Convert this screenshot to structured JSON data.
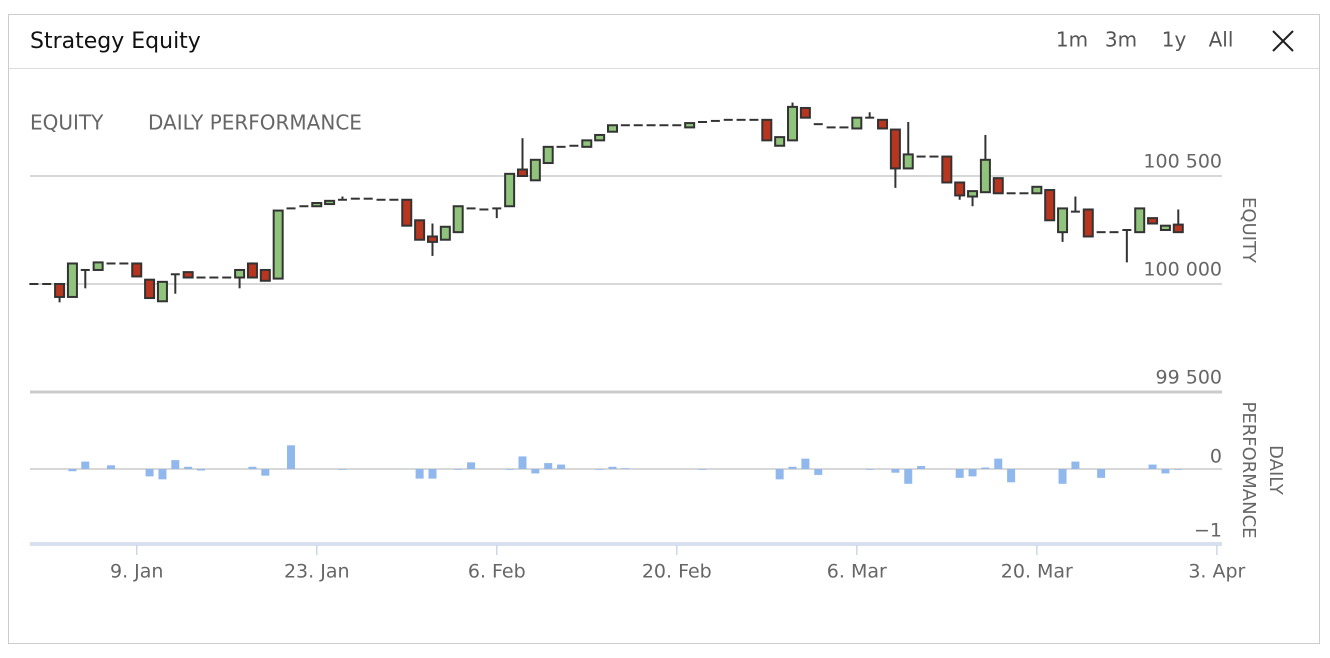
{
  "header": {
    "title": "Strategy Equity",
    "buttons": [
      "1m",
      "3m",
      "1y",
      "All"
    ]
  },
  "tabs": [
    "EQUITY",
    "DAILY PERFORMANCE"
  ],
  "chart_data": [
    {
      "type": "candlestick",
      "y_label": "EQUITY",
      "x": [
        1,
        2,
        3,
        4,
        5,
        6,
        7,
        8,
        9,
        10,
        11,
        12,
        13,
        14,
        15,
        16,
        17,
        18,
        19,
        20,
        21,
        22,
        23,
        24,
        25,
        26,
        27,
        28,
        29,
        30,
        31,
        32,
        33,
        34,
        35,
        36,
        37,
        38,
        39,
        40,
        41,
        42,
        43,
        44,
        45,
        46,
        47,
        48,
        49,
        50,
        51,
        52,
        53,
        54,
        55,
        56,
        57,
        58,
        59,
        60,
        61,
        62,
        63,
        64,
        65,
        66,
        67,
        68,
        69,
        70,
        71,
        72,
        73,
        74,
        75,
        76,
        77,
        78,
        79,
        80,
        81,
        82,
        83,
        84,
        85,
        86,
        87,
        88,
        89,
        90
      ],
      "open": [
        100000,
        100000,
        100000,
        99940,
        100065,
        100065,
        100095,
        100095,
        100095,
        100020,
        99920,
        100045,
        100055,
        100030,
        100030,
        100030,
        100030,
        100095,
        100065,
        100025,
        100350,
        100360,
        100360,
        100370,
        100390,
        100395,
        100395,
        100390,
        100390,
        100390,
        100295,
        100220,
        100205,
        100240,
        100350,
        100345,
        100350,
        100360,
        100530,
        100480,
        100560,
        100635,
        100640,
        100635,
        100665,
        100705,
        100735,
        100735,
        100735,
        100735,
        100735,
        100725,
        100750,
        100755,
        100760,
        100760,
        100760,
        100760,
        100640,
        100665,
        100815,
        100740,
        100725,
        100725,
        100720,
        100770,
        100760,
        100715,
        100535,
        100590,
        100590,
        100590,
        100470,
        100405,
        100425,
        100490,
        100420,
        100420,
        100420,
        100435,
        100240,
        100335,
        100345,
        100240,
        100240,
        100250,
        100240,
        100305,
        100250,
        100275
      ],
      "high": [
        100000,
        100000,
        100000,
        100095,
        100065,
        100100,
        100095,
        100095,
        100095,
        100020,
        100010,
        100045,
        100055,
        100030,
        100030,
        100030,
        100065,
        100100,
        100065,
        100340,
        100350,
        100360,
        100375,
        100385,
        100405,
        100395,
        100395,
        100390,
        100390,
        100390,
        100295,
        100280,
        100265,
        100360,
        100350,
        100345,
        100350,
        100510,
        100675,
        100575,
        100635,
        100635,
        100640,
        100665,
        100690,
        100735,
        100735,
        100735,
        100735,
        100735,
        100735,
        100745,
        100750,
        100755,
        100760,
        100760,
        100760,
        100760,
        100680,
        100840,
        100815,
        100740,
        100725,
        100725,
        100770,
        100795,
        100760,
        100715,
        100750,
        100590,
        100590,
        100590,
        100470,
        100430,
        100690,
        100490,
        100420,
        100420,
        100450,
        100435,
        100350,
        100405,
        100345,
        100240,
        100240,
        100250,
        100350,
        100305,
        100270,
        100345
      ],
      "low": [
        100000,
        100000,
        99915,
        99940,
        99980,
        100065,
        100095,
        100095,
        100035,
        99935,
        99920,
        99955,
        100030,
        100030,
        100030,
        100030,
        99980,
        100030,
        100015,
        100025,
        100350,
        100360,
        100360,
        100370,
        100390,
        100395,
        100395,
        100390,
        100390,
        100270,
        100205,
        100130,
        100205,
        100240,
        100350,
        100345,
        100305,
        100360,
        100500,
        100480,
        100560,
        100635,
        100640,
        100635,
        100665,
        100705,
        100735,
        100735,
        100735,
        100735,
        100735,
        100725,
        100750,
        100755,
        100760,
        100760,
        100760,
        100665,
        100640,
        100665,
        100770,
        100740,
        100725,
        100725,
        100720,
        100770,
        100720,
        100445,
        100535,
        100590,
        100590,
        100470,
        100390,
        100360,
        100425,
        100420,
        100420,
        100420,
        100420,
        100295,
        100195,
        100335,
        100220,
        100240,
        100240,
        100100,
        100240,
        100280,
        100250,
        100240
      ],
      "close": [
        100000,
        100000,
        99940,
        100095,
        100065,
        100100,
        100095,
        100095,
        100035,
        99935,
        100010,
        100045,
        100030,
        100030,
        100030,
        100030,
        100065,
        100030,
        100015,
        100340,
        100350,
        100360,
        100375,
        100385,
        100390,
        100395,
        100395,
        100390,
        100390,
        100270,
        100205,
        100195,
        100265,
        100360,
        100350,
        100345,
        100350,
        100510,
        100500,
        100575,
        100635,
        100635,
        100640,
        100665,
        100690,
        100735,
        100735,
        100735,
        100735,
        100735,
        100735,
        100745,
        100750,
        100755,
        100760,
        100760,
        100760,
        100665,
        100680,
        100820,
        100770,
        100740,
        100725,
        100725,
        100770,
        100770,
        100720,
        100535,
        100600,
        100590,
        100590,
        100470,
        100410,
        100430,
        100575,
        100420,
        100420,
        100420,
        100450,
        100295,
        100350,
        100335,
        100220,
        100240,
        100240,
        100250,
        100350,
        100280,
        100270,
        100240
      ],
      "up_color": "#90c47c",
      "down_color": "#b8361f",
      "line_color": "#333333",
      "xlim": [
        0.7,
        93.4
      ],
      "ylim": [
        99500,
        101000
      ],
      "yticks": [
        {
          "value": 99500,
          "label": "99 500"
        },
        {
          "value": 100000,
          "label": "100 000"
        },
        {
          "value": 100500,
          "label": "100 500"
        }
      ],
      "grid": true
    },
    {
      "type": "bar",
      "y_label": "DAILY PERFORMANCE",
      "x": [
        1,
        2,
        3,
        4,
        5,
        6,
        7,
        8,
        9,
        10,
        11,
        12,
        13,
        14,
        15,
        16,
        17,
        18,
        19,
        20,
        21,
        22,
        23,
        24,
        25,
        26,
        27,
        28,
        29,
        30,
        31,
        32,
        33,
        34,
        35,
        36,
        37,
        38,
        39,
        40,
        41,
        42,
        43,
        44,
        45,
        46,
        47,
        48,
        49,
        50,
        51,
        52,
        53,
        54,
        55,
        56,
        57,
        58,
        59,
        60,
        61,
        62,
        63,
        64,
        65,
        66,
        67,
        68,
        69,
        70,
        71,
        72,
        73,
        74,
        75,
        76,
        77,
        78,
        79,
        80,
        81,
        82,
        83,
        84,
        85,
        86,
        87,
        88,
        89,
        90
      ],
      "values": [
        0,
        0,
        0,
        -0.03,
        0.1,
        0,
        0.05,
        0,
        0,
        -0.1,
        -0.14,
        0.12,
        0.03,
        -0.02,
        0,
        0,
        0,
        0.03,
        -0.09,
        0,
        0.32,
        0,
        0,
        0,
        -0.01,
        0,
        0,
        0,
        0,
        0,
        -0.13,
        -0.13,
        0,
        -0.01,
        0.09,
        0,
        0,
        -0.01,
        0.17,
        -0.06,
        0.08,
        0.06,
        0,
        0,
        -0.01,
        0.03,
        0.01,
        0,
        0,
        0,
        0,
        0,
        -0.01,
        0,
        0,
        0,
        0,
        0,
        -0.14,
        0.03,
        0.14,
        -0.08,
        0,
        0,
        0,
        -0.01,
        0,
        -0.05,
        -0.2,
        0.04,
        0,
        0,
        -0.12,
        -0.1,
        0.02,
        0.14,
        -0.18,
        0,
        0,
        0,
        -0.2,
        0.1,
        0,
        -0.12,
        0,
        0,
        0,
        0.06,
        -0.06,
        -0.01
      ],
      "color": "#90b8ec",
      "xlim": [
        0.7,
        93.4
      ],
      "ylim": [
        -1,
        1
      ],
      "yticks": [
        {
          "value": -1,
          "label": "−1"
        },
        0
      ],
      "xticks": [
        {
          "value": 9,
          "label": "9. Jan"
        },
        {
          "value": 23,
          "label": "23. Jan"
        },
        {
          "value": 37,
          "label": "6. Feb"
        },
        {
          "value": 51,
          "label": "20. Feb"
        },
        {
          "value": 65,
          "label": "6. Mar"
        },
        {
          "value": 79,
          "label": "20. Mar"
        },
        {
          "value": 93,
          "label": "3. Apr"
        }
      ]
    }
  ]
}
